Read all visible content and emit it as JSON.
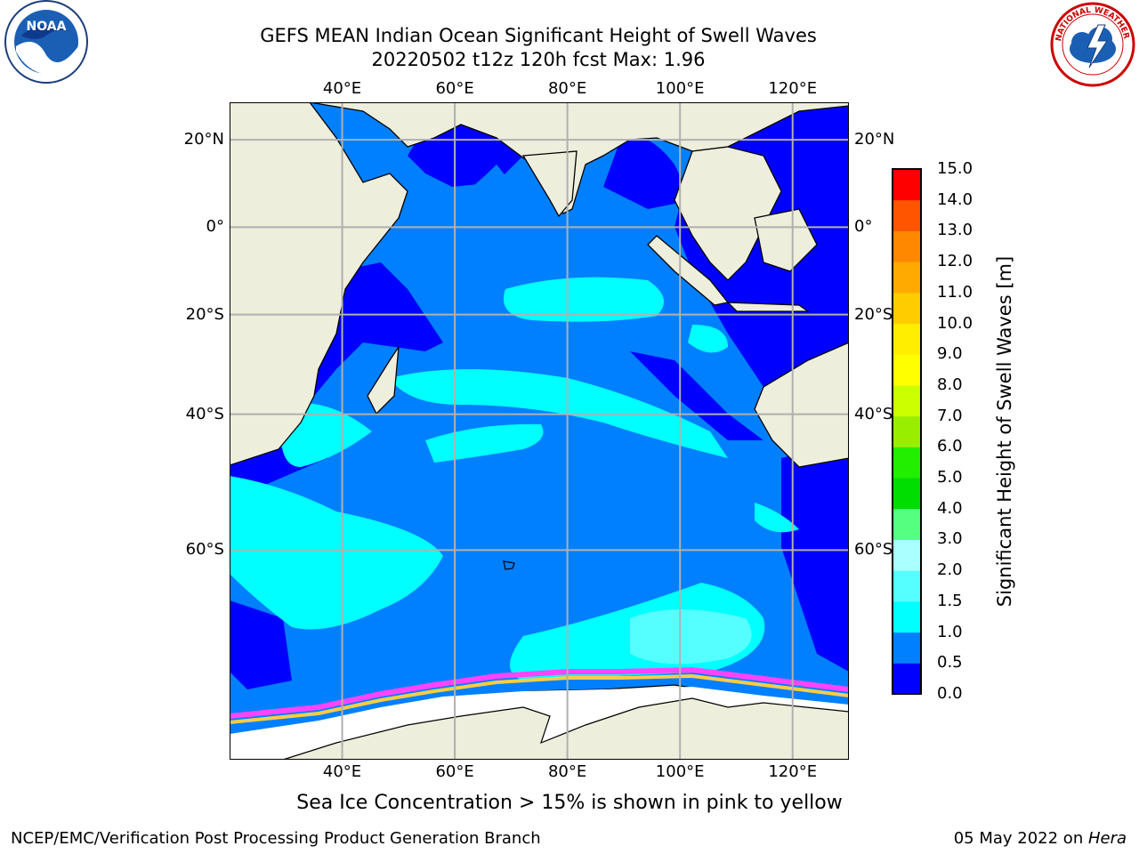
{
  "header": {
    "title_line1": "GEFS MEAN Indian Ocean Significant Height of Swell Waves",
    "title_line2": "20220502 t12z 120h fcst   Max: 1.96"
  },
  "logos": {
    "left": "NOAA",
    "right_text": "NATIONAL WEATHER SERVICE"
  },
  "map": {
    "lon_ticks": [
      "40°E",
      "60°E",
      "80°E",
      "100°E",
      "120°E"
    ],
    "lon_values": [
      40,
      60,
      80,
      100,
      120
    ],
    "lat_ticks": [
      "20°N",
      "0°",
      "20°S",
      "40°S",
      "60°S"
    ],
    "lat_values": [
      20,
      0,
      -20,
      -40,
      -60
    ],
    "lon_range": [
      20,
      130
    ],
    "lat_range": [
      -77,
      28
    ],
    "colors": {
      "land": "#eeeedd",
      "ice": "#ffffff",
      "ocean_low": "#0000ff",
      "ocean_mid": "#0080ff",
      "ocean_high": "#00ffff",
      "ocean_top": "#55ffff",
      "grid": "#b0b0b0"
    }
  },
  "colorbar": {
    "title": "Significant Height of Swell Waves [m]",
    "labels": [
      "0.0",
      "0.5",
      "1.0",
      "1.5",
      "2.0",
      "3.0",
      "4.0",
      "5.0",
      "6.0",
      "7.0",
      "8.0",
      "9.0",
      "10.0",
      "11.0",
      "12.0",
      "13.0",
      "14.0",
      "15.0"
    ],
    "colors": [
      "#0000ff",
      "#0080ff",
      "#00ffff",
      "#55ffff",
      "#aaffff",
      "#55ff80",
      "#00dd00",
      "#22ee00",
      "#99ee00",
      "#ccff00",
      "#ffff00",
      "#ffee00",
      "#ffcc00",
      "#ffaa00",
      "#ff8800",
      "#ff5500",
      "#ff0000"
    ]
  },
  "note": "Sea Ice Concentration > 15% is shown in pink to yellow",
  "footer": {
    "left": "NCEP/EMC/Verification Post Processing Product Generation Branch",
    "right_date": "05 May 2022 on ",
    "right_machine": "Hera"
  }
}
